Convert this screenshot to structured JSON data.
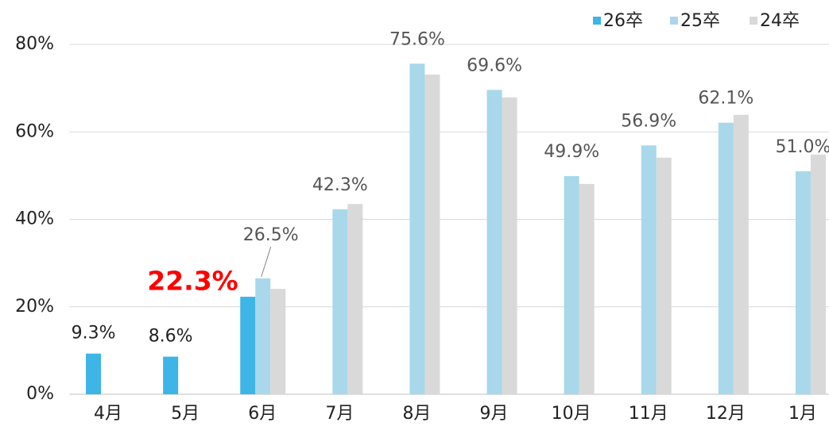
{
  "chart_data": {
    "type": "bar",
    "categories": [
      "4月",
      "5月",
      "6月",
      "7月",
      "8月",
      "9月",
      "10月",
      "11月",
      "12月",
      "1月"
    ],
    "series": [
      {
        "name": "26卒",
        "color": "#3db5e6",
        "values": [
          9.3,
          8.6,
          22.3,
          null,
          null,
          null,
          null,
          null,
          null,
          null
        ],
        "value_labels": [
          "9.3%",
          "8.6%",
          "22.3%",
          null,
          null,
          null,
          null,
          null,
          null,
          null
        ],
        "highlight": {
          "index": 2,
          "color": "#ff0000"
        }
      },
      {
        "name": "25卒",
        "color": "#a8d8ea",
        "values": [
          null,
          null,
          26.5,
          42.3,
          75.6,
          69.6,
          49.9,
          56.9,
          62.1,
          51.0
        ],
        "value_labels": [
          null,
          null,
          "26.5%",
          "42.3%",
          "75.6%",
          "69.6%",
          "49.9%",
          "56.9%",
          "62.1%",
          "51.0%"
        ]
      },
      {
        "name": "24卒",
        "color": "#d9d9d9",
        "values": [
          null,
          null,
          24.1,
          43.5,
          73.1,
          67.9,
          48.1,
          54.1,
          63.9,
          54.8
        ]
      }
    ],
    "ylim": [
      0,
      80
    ],
    "yticks": [
      {
        "value": 0,
        "label": "0%"
      },
      {
        "value": 20,
        "label": "20%"
      },
      {
        "value": 40,
        "label": "40%"
      },
      {
        "value": 60,
        "label": "60%"
      },
      {
        "value": 80,
        "label": "80%"
      }
    ],
    "grid": true,
    "legend": "top-right"
  }
}
